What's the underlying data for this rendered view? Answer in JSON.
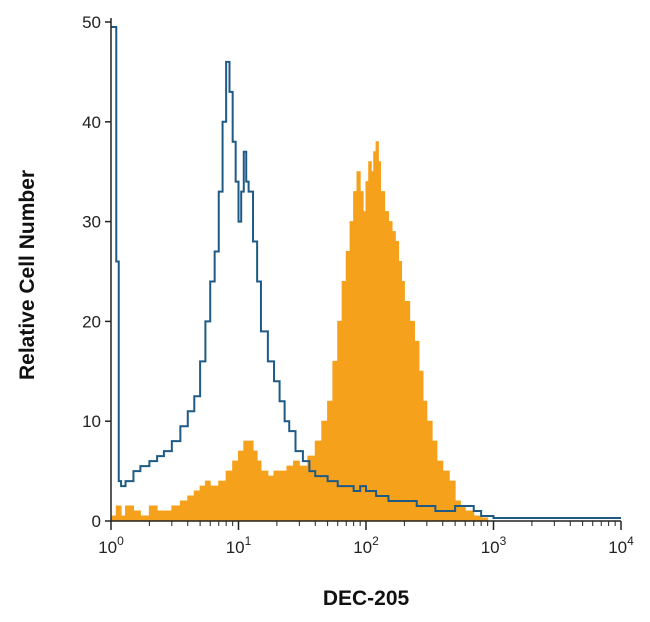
{
  "chart_data": {
    "type": "area",
    "title": "",
    "xlabel": "DEC-205",
    "ylabel": "Relative Cell Number",
    "x_scale": "log",
    "xlim": [
      1,
      10000
    ],
    "ylim": [
      0,
      50
    ],
    "x_ticks": [
      {
        "value": 1,
        "base": "10",
        "exp": "0"
      },
      {
        "value": 10,
        "base": "10",
        "exp": "1"
      },
      {
        "value": 100,
        "base": "10",
        "exp": "2"
      },
      {
        "value": 1000,
        "base": "10",
        "exp": "3"
      },
      {
        "value": 10000,
        "base": "10",
        "exp": "4"
      }
    ],
    "y_ticks": [
      {
        "value": 0,
        "label": "0"
      },
      {
        "value": 10,
        "label": "10"
      },
      {
        "value": 20,
        "label": "20"
      },
      {
        "value": 30,
        "label": "30"
      },
      {
        "value": 40,
        "label": "40"
      },
      {
        "value": 50,
        "label": "50"
      }
    ],
    "grid": false,
    "legend": "none",
    "series": [
      {
        "style": "outline",
        "color": "#1f5a85",
        "x": [
          1.0,
          1.1,
          1.15,
          1.2,
          1.3,
          1.5,
          1.7,
          2.0,
          2.3,
          2.6,
          3.0,
          3.5,
          4.0,
          4.5,
          5.0,
          5.5,
          6.0,
          6.5,
          7.0,
          7.5,
          8.0,
          8.5,
          9.0,
          9.5,
          10.0,
          10.5,
          11.0,
          11.5,
          12.0,
          13.0,
          14.0,
          15.0,
          17.0,
          19.0,
          21.0,
          23.0,
          25.0,
          28.0,
          32.0,
          36.0,
          40.0,
          50.0,
          60.0,
          70.0,
          80.0,
          90.0,
          100.0,
          120.0,
          150.0,
          200.0,
          250.0,
          300.0,
          350.0,
          400.0,
          450.0,
          500.0,
          600.0,
          700.0,
          800.0,
          900.0,
          1000.0,
          2000.0,
          5000.0,
          10000.0
        ],
        "y": [
          49.5,
          26,
          4,
          3.5,
          4,
          5,
          5.5,
          6,
          6.5,
          7,
          8,
          9.5,
          11,
          12.5,
          16,
          20,
          24,
          27,
          33,
          40,
          46,
          43,
          38,
          34,
          30,
          33,
          37,
          34,
          33,
          28,
          24,
          19,
          16,
          14,
          12,
          10,
          9,
          7,
          6,
          5,
          4.5,
          4,
          3.5,
          3.5,
          3,
          3.5,
          3,
          2.5,
          2,
          2,
          1.5,
          1.5,
          1,
          1,
          1,
          1.5,
          1.5,
          1,
          0.5,
          0.5,
          0.3,
          0.3,
          0.3,
          0.3
        ]
      },
      {
        "style": "filled",
        "color": "#f6a11c",
        "x": [
          1.0,
          1.1,
          1.2,
          1.3,
          1.5,
          1.7,
          2.0,
          2.3,
          2.6,
          3.0,
          3.5,
          4.0,
          4.5,
          5.0,
          5.5,
          6.0,
          7.0,
          8.0,
          9.0,
          10.0,
          11.0,
          12.0,
          13.0,
          14.0,
          15.0,
          17.0,
          19.0,
          21.0,
          24.0,
          27.0,
          30.0,
          35.0,
          40.0,
          45.0,
          50.0,
          55.0,
          60.0,
          65.0,
          70.0,
          75.0,
          80.0,
          85.0,
          90.0,
          95.0,
          100.0,
          105.0,
          110.0,
          115.0,
          120.0,
          125.0,
          130.0,
          140.0,
          150.0,
          160.0,
          170.0,
          180.0,
          190.0,
          200.0,
          220.0,
          240.0,
          260.0,
          280.0,
          300.0,
          330.0,
          360.0,
          400.0,
          450.0,
          500.0,
          550.0,
          600.0,
          700.0,
          800.0,
          900.0,
          1000.0
        ],
        "y": [
          0.5,
          1.5,
          0.5,
          1.5,
          1,
          0.5,
          1.5,
          1,
          1,
          1.5,
          2,
          2.5,
          3,
          3.5,
          4,
          3.5,
          4,
          5,
          6,
          7,
          8,
          8,
          7,
          6,
          5,
          4.5,
          5,
          5,
          5.5,
          6,
          5.5,
          6.5,
          8,
          10,
          12,
          16,
          20,
          24,
          27,
          30,
          33,
          35,
          33,
          31,
          34,
          36,
          35,
          37,
          38,
          36,
          33,
          31,
          30,
          29,
          28,
          26,
          24,
          22,
          20,
          18,
          15,
          12,
          10,
          8,
          6,
          5,
          4,
          2,
          1.5,
          1,
          0.5,
          0.3,
          0,
          0
        ]
      }
    ]
  }
}
